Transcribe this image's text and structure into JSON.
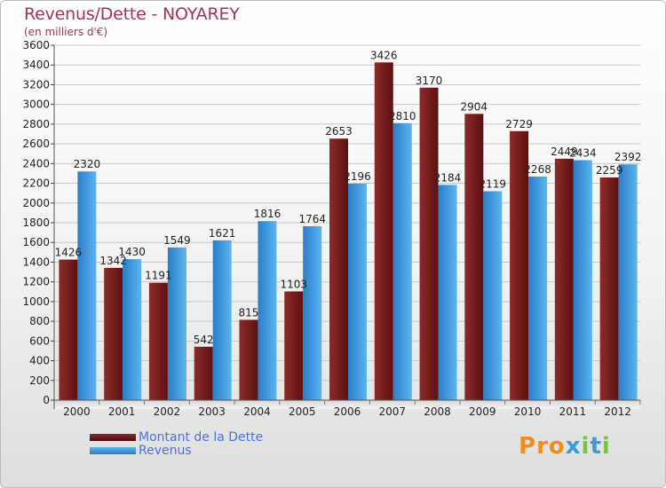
{
  "header": {
    "title": "Revenus/Dette - NOYAREY",
    "subtitle": "(en milliers d'€)"
  },
  "logo": {
    "text": "Proxiti",
    "letter_colors": [
      "#f28c1e",
      "#f28c1e",
      "#f28c1e",
      "#3b9ad9",
      "#7cc242",
      "#3b9ad9",
      "#7cc242"
    ]
  },
  "chart_data": {
    "type": "bar",
    "title": "Revenus/Dette - NOYAREY",
    "subtitle": "(en milliers d'€)",
    "xlabel": "",
    "ylabel": "",
    "categories": [
      "2000",
      "2001",
      "2002",
      "2003",
      "2004",
      "2005",
      "2006",
      "2007",
      "2008",
      "2009",
      "2010",
      "2011",
      "2012"
    ],
    "series": [
      {
        "name": "Montant de la Dette",
        "color": "#7a1f1f",
        "values": [
          1426,
          1342,
          1191,
          542,
          815,
          1103,
          2653,
          3426,
          3170,
          2904,
          2729,
          2449,
          2259
        ]
      },
      {
        "name": "Revenus",
        "color": "#3d9ae0",
        "values": [
          2320,
          1430,
          1549,
          1621,
          1816,
          1764,
          2196,
          2810,
          2184,
          2119,
          2268,
          2434,
          2392
        ]
      }
    ],
    "ylim": [
      0,
      3600
    ],
    "ytick_step": 200,
    "grid": true,
    "legend_position": "bottom-left"
  }
}
